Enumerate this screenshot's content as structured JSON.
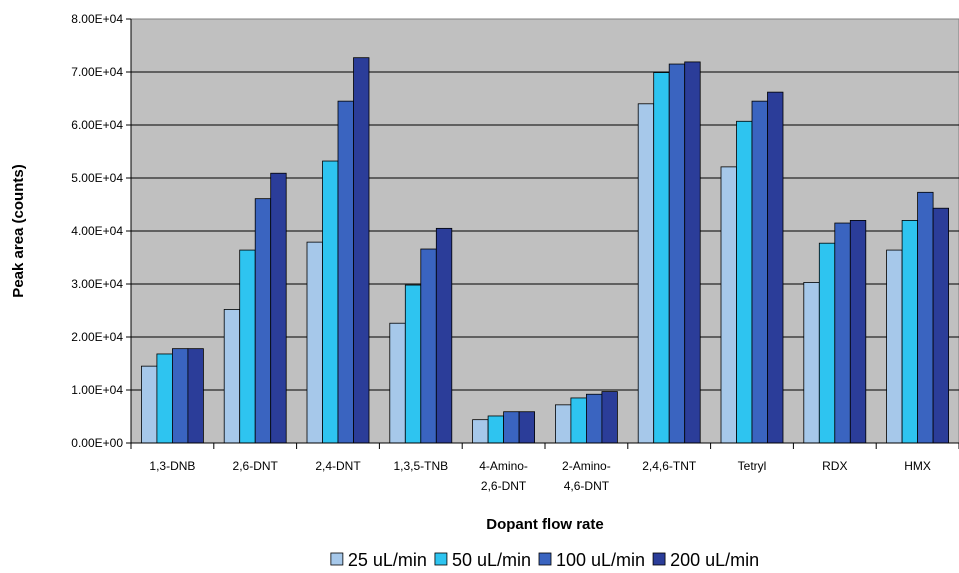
{
  "chart_data": {
    "type": "bar",
    "title": "",
    "xlabel": "Dopant flow rate",
    "ylabel": "Peak area (counts)",
    "ylim": [
      0,
      80000
    ],
    "yticks": [
      "0.00E+00",
      "1.00E+04",
      "2.00E+04",
      "3.00E+04",
      "4.00E+04",
      "5.00E+04",
      "6.00E+04",
      "7.00E+04",
      "8.00E+04"
    ],
    "categories": [
      [
        "1,3-DNB"
      ],
      [
        "2,6-DNT"
      ],
      [
        "2,4-DNT"
      ],
      [
        "1,3,5-TNB"
      ],
      [
        "4-Amino-",
        "2,6-DNT"
      ],
      [
        "2-Amino-",
        "4,6-DNT"
      ],
      [
        "2,4,6-TNT"
      ],
      [
        "Tetryl"
      ],
      [
        "RDX"
      ],
      [
        "HMX"
      ]
    ],
    "series": [
      {
        "name": "25 uL/min",
        "color": "#a6c8ea",
        "values": [
          14500,
          25200,
          37900,
          22600,
          4400,
          7200,
          64000,
          52100,
          30300,
          36400
        ]
      },
      {
        "name": "50 uL/min",
        "color": "#2ec4f0",
        "values": [
          16800,
          36400,
          53200,
          29800,
          5100,
          8500,
          69900,
          60700,
          37700,
          42000
        ]
      },
      {
        "name": "100 uL/min",
        "color": "#3a64c0",
        "values": [
          17800,
          46100,
          64500,
          36600,
          5900,
          9200,
          71500,
          64500,
          41500,
          47300
        ]
      },
      {
        "name": "200 uL/min",
        "color": "#2b3d99",
        "values": [
          17800,
          50900,
          72700,
          40500,
          5900,
          9700,
          71900,
          66200,
          42000,
          44300
        ]
      }
    ],
    "grid": true,
    "legend_position": "bottom",
    "plot_background": "#c0c0c0"
  }
}
